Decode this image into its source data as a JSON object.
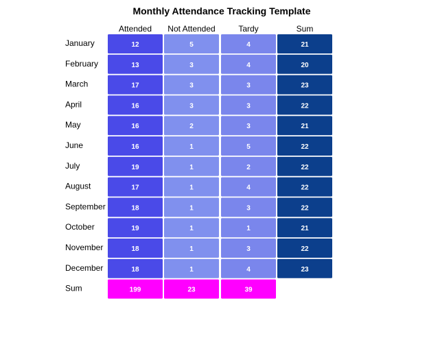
{
  "chart_data": {
    "type": "table",
    "title": "Monthly Attendance Tracking Template",
    "columns": [
      "Attended",
      "Not Attended",
      "Tardy",
      "Sum"
    ],
    "rows": [
      {
        "label": "January",
        "values": [
          12,
          5,
          4,
          21
        ]
      },
      {
        "label": "February",
        "values": [
          13,
          3,
          4,
          20
        ]
      },
      {
        "label": "March",
        "values": [
          17,
          3,
          3,
          23
        ]
      },
      {
        "label": "April",
        "values": [
          16,
          3,
          3,
          22
        ]
      },
      {
        "label": "May",
        "values": [
          16,
          2,
          3,
          21
        ]
      },
      {
        "label": "June",
        "values": [
          16,
          1,
          5,
          22
        ]
      },
      {
        "label": "July",
        "values": [
          19,
          1,
          2,
          22
        ]
      },
      {
        "label": "August",
        "values": [
          17,
          1,
          4,
          22
        ]
      },
      {
        "label": "September",
        "values": [
          18,
          1,
          3,
          22
        ]
      },
      {
        "label": "October",
        "values": [
          19,
          1,
          1,
          21
        ]
      },
      {
        "label": "November",
        "values": [
          18,
          1,
          3,
          22
        ]
      },
      {
        "label": "December",
        "values": [
          18,
          1,
          4,
          23
        ]
      }
    ],
    "total_row": {
      "label": "Sum",
      "values": [
        199,
        23,
        39
      ]
    },
    "colors": {
      "attended": "#4a4ae8",
      "not_attended": "#8090ee",
      "tardy": "#7a86ec",
      "sum_column": "#0c3f8c",
      "sum_row": "#ff00ff",
      "cell_text": "#ffffff"
    }
  }
}
